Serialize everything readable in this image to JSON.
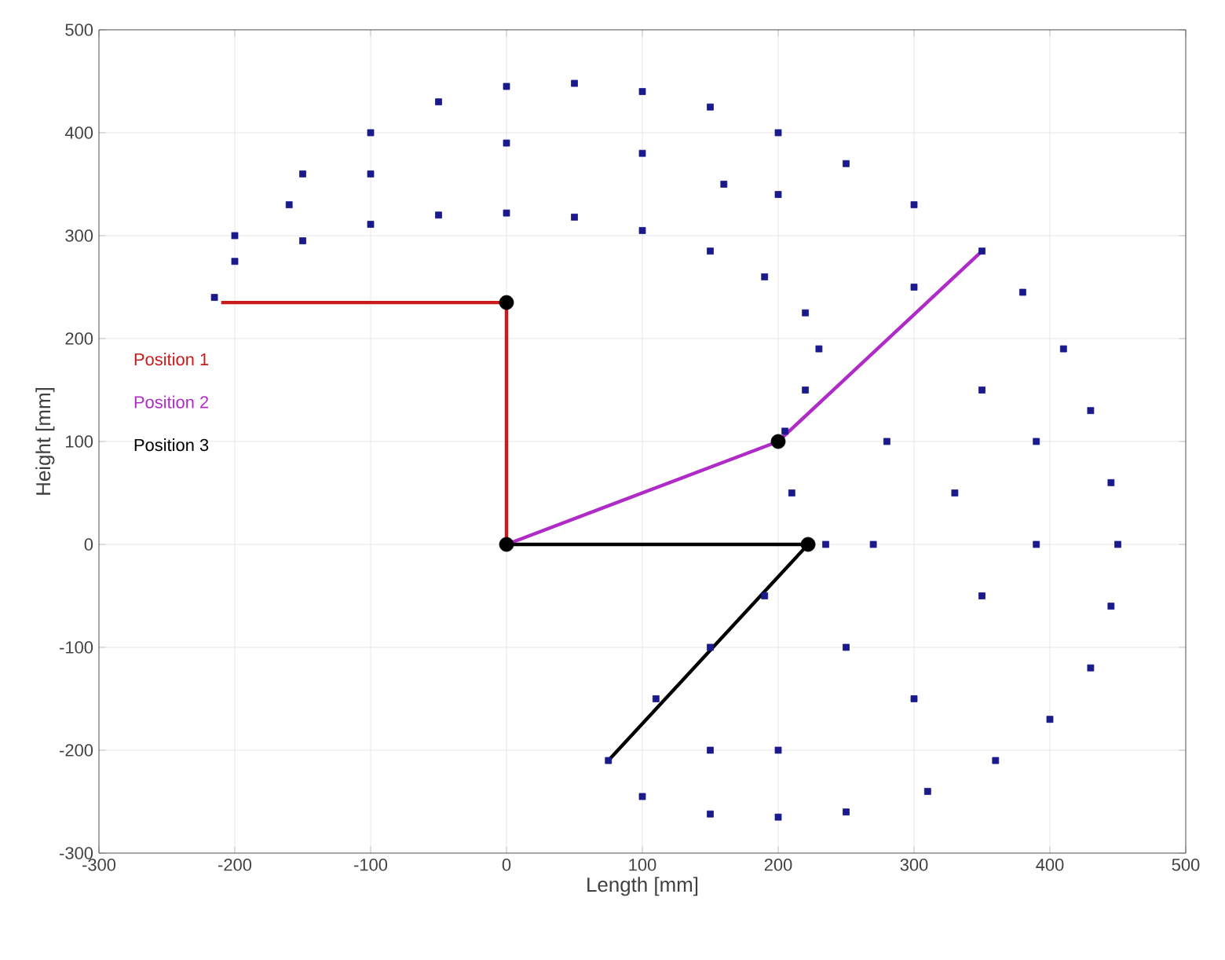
{
  "chart_data": {
    "type": "scatter",
    "xlabel": "Length [mm]",
    "ylabel": "Height [mm]",
    "xlim": [
      -300,
      500
    ],
    "ylim": [
      -300,
      500
    ],
    "xticks": [
      -300,
      -200,
      -100,
      0,
      100,
      200,
      300,
      400,
      500
    ],
    "yticks": [
      -300,
      -200,
      -100,
      0,
      100,
      200,
      300,
      400,
      500
    ],
    "grid": true,
    "legend": "left",
    "series": [
      {
        "color": "#1a1a8c",
        "marker": "square",
        "x": [
          -215,
          -200,
          -150,
          -100,
          -50,
          0,
          50,
          100,
          150,
          200,
          250,
          300,
          350,
          380,
          410,
          430,
          445,
          450,
          445,
          430,
          400,
          360,
          310,
          250,
          200,
          150,
          100,
          75,
          110,
          150,
          190,
          235,
          210,
          205,
          220,
          230,
          220,
          190,
          150,
          100,
          50,
          0,
          -50,
          -100,
          -150,
          -200,
          0,
          -100,
          100,
          200,
          300,
          350,
          330,
          350,
          300,
          200,
          270,
          280,
          250,
          -160,
          160,
          390,
          390,
          150
        ],
        "values": [
          240,
          300,
          360,
          400,
          430,
          445,
          448,
          440,
          425,
          400,
          370,
          330,
          285,
          245,
          190,
          130,
          60,
          0,
          -60,
          -120,
          -170,
          -210,
          -240,
          -260,
          -265,
          -262,
          -245,
          -210,
          -150,
          -100,
          -50,
          0,
          50,
          110,
          150,
          190,
          225,
          260,
          285,
          305,
          318,
          322,
          320,
          311,
          295,
          275,
          390,
          360,
          380,
          340,
          250,
          150,
          50,
          -50,
          -150,
          -200,
          0,
          100,
          -100,
          330,
          350,
          0,
          100,
          -200
        ]
      },
      {
        "type": "line",
        "name": "Position 1",
        "color": "#cc1a1a",
        "x": [
          -210,
          0,
          0
        ],
        "values": [
          235,
          235,
          0
        ]
      },
      {
        "type": "line",
        "name": "Position 2",
        "color": "#b02ac8",
        "x": [
          0,
          200,
          350
        ],
        "values": [
          0,
          100,
          285
        ]
      },
      {
        "type": "line",
        "name": "Position 3",
        "color": "#000000",
        "x": [
          0,
          222,
          75
        ],
        "values": [
          0,
          0,
          -210
        ]
      },
      {
        "type": "scatter",
        "color": "#000000",
        "marker": "circle",
        "x": [
          0,
          0,
          200,
          222
        ],
        "values": [
          235,
          0,
          100,
          0
        ]
      }
    ]
  }
}
